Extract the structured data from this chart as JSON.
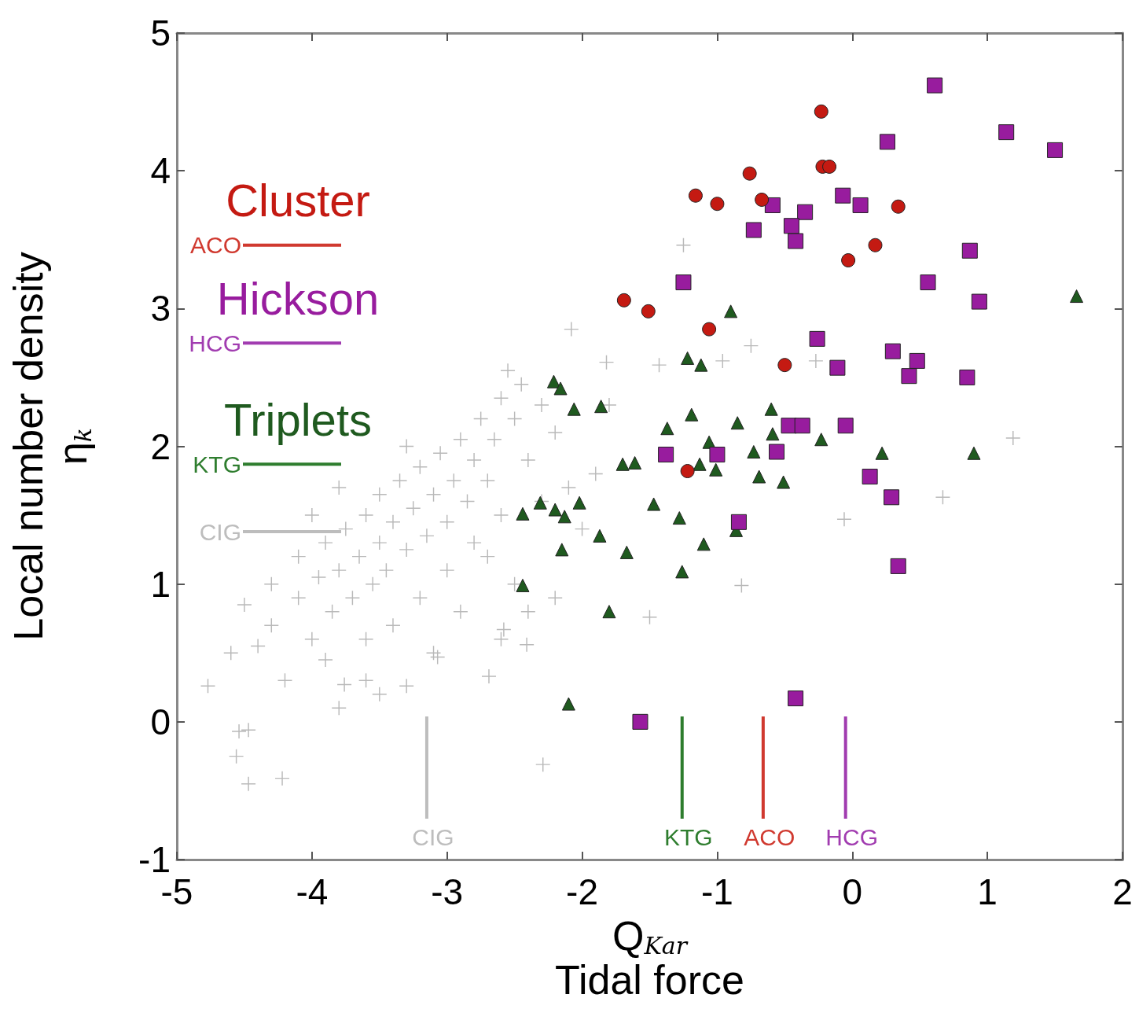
{
  "chart_data": {
    "type": "scatter",
    "xlabel": "Q$_{Kar}$\nTidal force",
    "ylabel": "Local number density\nη$_{k}$",
    "xlim": [
      -5,
      2
    ],
    "ylim": [
      -1,
      5
    ],
    "xticks": [
      -5,
      -4,
      -3,
      -2,
      -1,
      0,
      1,
      2
    ],
    "yticks": [
      -1,
      0,
      1,
      2,
      3,
      4,
      5
    ],
    "grid": false,
    "series": [
      {
        "name": "Cluster",
        "color": "#c41a12",
        "marker": "circle",
        "x": [
          -0.23,
          -0.22,
          -0.17,
          -0.76,
          -1.16,
          -1.0,
          -0.67,
          0.34,
          0.17,
          -0.03,
          -1.69,
          -1.51,
          -1.06,
          -0.5,
          -1.22
        ],
        "values": [
          4.43,
          4.03,
          4.03,
          3.98,
          3.82,
          3.76,
          3.79,
          3.74,
          3.46,
          3.35,
          3.06,
          2.98,
          2.85,
          2.59,
          1.82
        ]
      },
      {
        "name": "Hickson",
        "color": "#981c9e",
        "marker": "square",
        "x": [
          0.61,
          1.14,
          1.5,
          0.26,
          -0.07,
          0.06,
          -0.59,
          -0.35,
          -0.45,
          -0.42,
          -0.73,
          0.87,
          -1.25,
          0.56,
          0.94,
          -0.26,
          -0.11,
          0.3,
          0.48,
          0.42,
          0.85,
          -0.47,
          -0.37,
          -0.05,
          -1.38,
          -1.0,
          -0.56,
          0.13,
          0.29,
          -0.84,
          0.34,
          -0.42,
          -1.57
        ],
        "values": [
          4.62,
          4.28,
          4.15,
          4.21,
          3.82,
          3.75,
          3.75,
          3.7,
          3.6,
          3.49,
          3.57,
          3.42,
          3.19,
          3.19,
          3.05,
          2.78,
          2.57,
          2.69,
          2.62,
          2.51,
          2.5,
          2.15,
          2.15,
          2.15,
          1.94,
          1.94,
          1.96,
          1.78,
          1.63,
          1.45,
          1.13,
          0.17,
          0.0
        ]
      },
      {
        "name": "Triplets",
        "color": "#1f5a1f",
        "marker": "triangle",
        "x": [
          1.66,
          -0.9,
          -1.22,
          -1.12,
          -2.21,
          -2.16,
          -2.06,
          -1.86,
          -1.19,
          -0.6,
          -1.37,
          -0.85,
          -0.59,
          -0.23,
          -1.06,
          -0.73,
          0.22,
          0.9,
          -1.7,
          -1.61,
          -1.13,
          -1.01,
          -0.69,
          -0.51,
          -2.44,
          -2.31,
          -2.2,
          -2.13,
          -2.02,
          -1.47,
          -1.28,
          -1.87,
          -2.15,
          -1.67,
          -1.1,
          -0.86,
          -1.26,
          -2.44,
          -1.8,
          -2.1
        ],
        "values": [
          3.09,
          2.98,
          2.64,
          2.59,
          2.47,
          2.42,
          2.27,
          2.29,
          2.23,
          2.27,
          2.13,
          2.17,
          2.09,
          2.05,
          2.03,
          1.96,
          1.95,
          1.95,
          1.87,
          1.88,
          1.87,
          1.83,
          1.78,
          1.74,
          1.51,
          1.59,
          1.54,
          1.49,
          1.59,
          1.58,
          1.48,
          1.35,
          1.25,
          1.23,
          1.29,
          1.39,
          1.09,
          0.99,
          0.8,
          0.13
        ]
      },
      {
        "color": "#b9b9b9",
        "marker": "cross",
        "x": [
          -4.77,
          -4.54,
          -4.47,
          -4.56,
          -4.47,
          -4.22,
          -2.29,
          -1.5,
          -0.82,
          -0.06,
          0.67,
          1.19,
          -1.25,
          -0.75,
          -0.27,
          -0.96,
          -1.43,
          -2.08,
          -1.82,
          -3.3,
          -3.76,
          -2.58,
          -2.41,
          -2.69,
          -3.07,
          -4.5,
          -4.3,
          -4.3,
          -4.1,
          -4.1,
          -4.0,
          -3.95,
          -3.9,
          -3.85,
          -3.8,
          -3.75,
          -3.7,
          -3.65,
          -3.6,
          -3.55,
          -3.5,
          -3.5,
          -3.45,
          -3.4,
          -3.35,
          -3.3,
          -3.25,
          -3.2,
          -3.15,
          -3.1,
          -3.05,
          -3.0,
          -2.95,
          -2.9,
          -2.85,
          -2.8,
          -2.75,
          -2.7,
          -2.65,
          -2.6,
          -2.55,
          -2.5,
          -2.45,
          -2.4,
          -2.3,
          -2.2,
          -2.6,
          -2.8,
          -3.0,
          -3.2,
          -3.4,
          -3.6,
          -3.9,
          -4.2,
          -4.4,
          -4.6,
          -4.0,
          -3.8,
          -3.3,
          -3.6,
          -2.9,
          -2.7,
          -2.5,
          -2.3,
          -2.1,
          -1.9,
          -2.0,
          -1.8,
          -2.4,
          -2.6,
          -3.1,
          -3.5,
          -3.8,
          -2.2
        ],
        "values": [
          0.26,
          -0.07,
          -0.06,
          -0.25,
          -0.45,
          -0.41,
          -0.31,
          0.76,
          0.99,
          1.47,
          1.63,
          2.06,
          3.46,
          2.73,
          2.62,
          2.62,
          2.59,
          2.85,
          2.61,
          0.26,
          0.27,
          0.67,
          0.56,
          0.33,
          0.47,
          0.85,
          0.7,
          1.0,
          0.9,
          1.2,
          0.6,
          1.05,
          1.3,
          0.8,
          1.1,
          1.4,
          0.9,
          1.2,
          1.5,
          1.0,
          1.3,
          1.65,
          1.1,
          1.45,
          1.75,
          1.25,
          1.55,
          1.85,
          1.35,
          1.65,
          1.95,
          1.45,
          1.75,
          2.05,
          1.6,
          1.9,
          2.2,
          1.75,
          2.05,
          2.35,
          2.55,
          2.2,
          2.45,
          1.9,
          2.3,
          2.1,
          1.5,
          1.3,
          1.1,
          0.9,
          0.7,
          0.6,
          0.45,
          0.3,
          0.55,
          0.5,
          1.5,
          1.7,
          2.0,
          0.3,
          0.8,
          1.2,
          1.0,
          1.6,
          1.7,
          1.8,
          1.4,
          2.3,
          0.8,
          0.6,
          0.5,
          0.2,
          0.1,
          0.9
        ]
      }
    ],
    "ref_lines": [
      {
        "axis": "y",
        "value": 3.46,
        "label": "ACO",
        "color": "#d0392f"
      },
      {
        "axis": "y",
        "value": 2.75,
        "label": "HCG",
        "color": "#a13cb0"
      },
      {
        "axis": "y",
        "value": 1.87,
        "label": "KTG",
        "color": "#2e7d2e"
      },
      {
        "axis": "y",
        "value": 1.38,
        "label": "CIG",
        "color": "#bdbdbd"
      },
      {
        "axis": "x",
        "value": -3.15,
        "label": "CIG",
        "color": "#bdbdbd"
      },
      {
        "axis": "x",
        "value": -1.26,
        "label": "KTG",
        "color": "#2e7d2e"
      },
      {
        "axis": "x",
        "value": -0.66,
        "label": "ACO",
        "color": "#d0392f"
      },
      {
        "axis": "x",
        "value": -0.05,
        "label": "HCG",
        "color": "#a13cb0"
      }
    ]
  }
}
